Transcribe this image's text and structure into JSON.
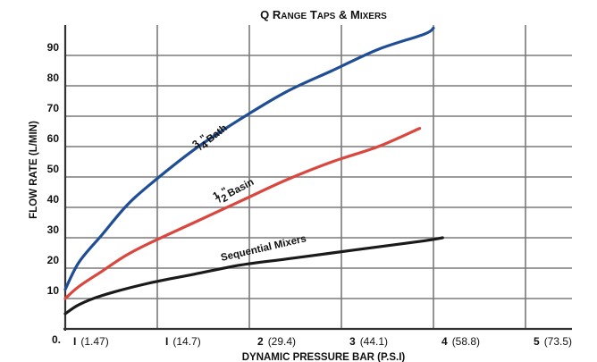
{
  "chart_data": {
    "type": "line",
    "title": "Q Range Taps & Mixers",
    "xlabel": "DYNAMIC PRESSURE BAR (P.S.I)",
    "ylabel": "FLOW RATE (L/MIN)",
    "x_ticks": [
      {
        "main": "0.",
        "sub": ""
      },
      {
        "main": "I",
        "sub": "(1.47)"
      },
      {
        "main": "I",
        "sub": "(14.7)"
      },
      {
        "main": "2",
        "sub": "(29.4)"
      },
      {
        "main": "3",
        "sub": "(44.1)"
      },
      {
        "main": "4",
        "sub": "(58.8)"
      },
      {
        "main": "5",
        "sub": "(73.5)"
      }
    ],
    "y_ticks": [
      "10",
      "20",
      "30",
      "40",
      "50",
      "60",
      "70",
      "80",
      "90"
    ],
    "xlim": [
      0,
      5.5
    ],
    "ylim": [
      0,
      100
    ],
    "grid": true,
    "legend": "none",
    "series": [
      {
        "name": "3/4\" Bath",
        "color": "#1f4e96",
        "x": [
          0.1,
          0.25,
          0.5,
          0.75,
          1.0,
          1.5,
          2.0,
          2.5,
          3.0,
          3.5,
          4.0,
          4.1
        ],
        "y": [
          13,
          22,
          31,
          40,
          47,
          59,
          69,
          78,
          85,
          92,
          97,
          99
        ]
      },
      {
        "name": "1/2\" Basin",
        "color": "#d9473f",
        "x": [
          0.1,
          0.25,
          0.5,
          0.75,
          1.0,
          1.5,
          2.0,
          2.5,
          3.0,
          3.5,
          3.95
        ],
        "y": [
          10,
          14,
          19,
          24,
          28,
          35,
          42,
          49,
          55,
          60,
          66
        ]
      },
      {
        "name": "Sequential Mixers",
        "color": "#1a1a1a",
        "x": [
          0.1,
          0.25,
          0.5,
          1.0,
          1.5,
          2.0,
          2.5,
          3.0,
          3.5,
          4.0,
          4.2
        ],
        "y": [
          5,
          8,
          11,
          15,
          18,
          21,
          23,
          25,
          27,
          29,
          30
        ]
      }
    ],
    "series_labels": {
      "bath_frac_num": "3",
      "bath_frac_den": "4",
      "bath_inch": "\"",
      "bath_word": "Bath",
      "basin_frac_num": "1",
      "basin_frac_den": "2",
      "basin_inch": "\"",
      "basin_word": "Basin",
      "seq": "Sequential Mixers"
    }
  }
}
